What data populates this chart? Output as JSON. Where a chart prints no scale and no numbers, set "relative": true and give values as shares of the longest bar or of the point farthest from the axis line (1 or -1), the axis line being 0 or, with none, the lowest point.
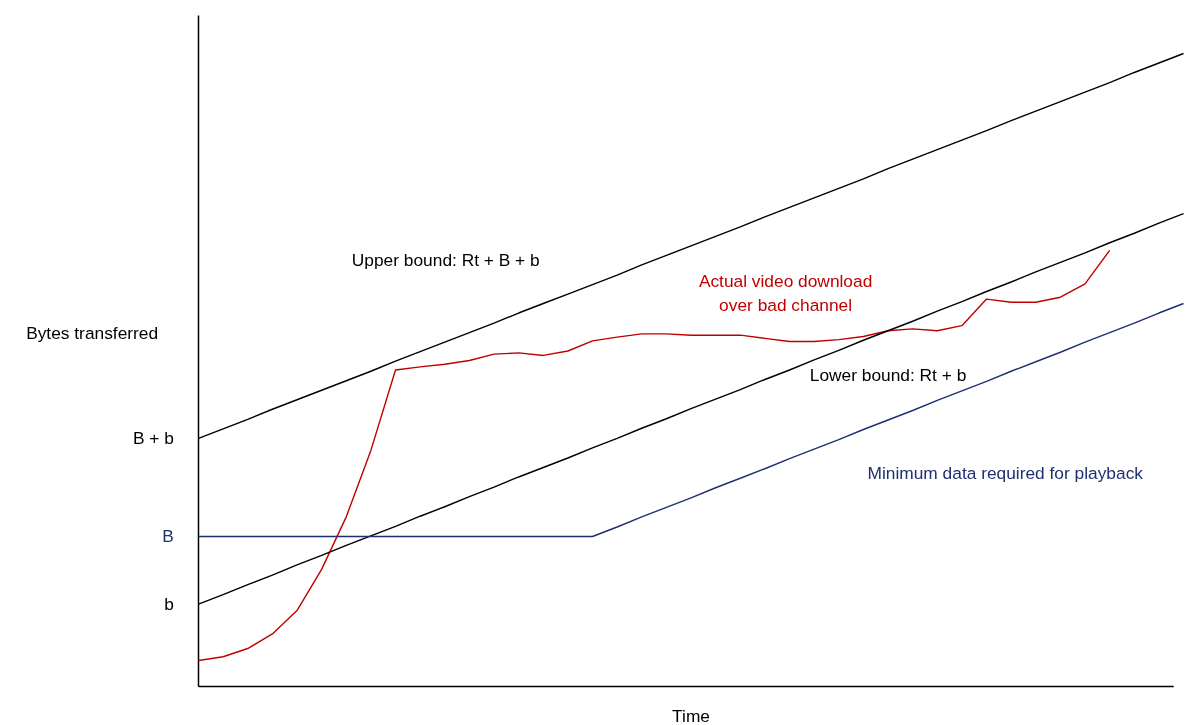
{
  "chart_data": {
    "type": "line",
    "relative": true,
    "xlabel": "Time",
    "ylabel": "Bytes transferred",
    "categories": [
      null,
      null,
      null,
      null,
      null,
      null,
      null,
      null,
      null,
      null,
      null,
      null,
      null,
      null,
      null,
      null,
      null,
      null,
      null,
      null,
      null,
      null,
      null,
      null,
      null,
      null,
      null,
      null,
      null,
      null,
      null,
      null,
      null,
      null,
      null,
      null,
      null,
      null,
      null,
      null,
      null
    ],
    "series": [
      {
        "name": "Upper bound: Rt + B + b",
        "color": "#000000",
        "values": [
          0.392,
          0.407,
          0.422,
          0.438,
          0.453,
          0.468,
          0.483,
          0.498,
          0.514,
          0.529,
          0.544,
          0.559,
          0.574,
          0.59,
          0.605,
          0.62,
          0.635,
          0.65,
          0.666,
          0.681,
          0.696,
          0.711,
          0.726,
          0.742,
          0.757,
          0.772,
          0.787,
          0.802,
          0.818,
          0.833,
          0.848,
          0.863,
          0.878,
          0.894,
          0.909,
          0.924,
          0.939,
          0.954,
          0.97,
          0.985,
          1.0
        ]
      },
      {
        "name": "Actual video download\nover bad channel",
        "color": "#c00000",
        "values": [
          0.041,
          0.047,
          0.06,
          0.083,
          0.12,
          0.185,
          0.268,
          0.373,
          0.5,
          0.505,
          0.509,
          0.515,
          0.525,
          0.527,
          0.523,
          0.53,
          0.546,
          0.552,
          0.557,
          0.557,
          0.555,
          0.555,
          0.555,
          0.55,
          0.545,
          0.545,
          0.548,
          0.553,
          0.562,
          0.565,
          0.562,
          0.57,
          0.612,
          0.607,
          0.607,
          0.615,
          0.636,
          0.689,
          null,
          null,
          null
        ]
      },
      {
        "name": "Lower bound: Rt + b",
        "color": "#000000",
        "values": [
          0.13,
          0.145,
          0.161,
          0.176,
          0.192,
          0.207,
          0.223,
          0.238,
          0.253,
          0.269,
          0.284,
          0.3,
          0.315,
          0.331,
          0.346,
          0.361,
          0.377,
          0.392,
          0.408,
          0.423,
          0.439,
          0.454,
          0.469,
          0.485,
          0.5,
          0.516,
          0.531,
          0.547,
          0.562,
          0.577,
          0.593,
          0.608,
          0.624,
          0.639,
          0.655,
          0.67,
          0.685,
          0.701,
          0.716,
          0.732,
          0.747
        ]
      },
      {
        "name": "Minimum data required for playback",
        "color": "#1f3070",
        "values": [
          0.237,
          0.237,
          0.237,
          0.237,
          0.237,
          0.237,
          0.237,
          0.237,
          0.237,
          0.237,
          0.237,
          0.237,
          0.237,
          0.237,
          0.237,
          0.237,
          0.237,
          0.252,
          0.268,
          0.283,
          0.298,
          0.314,
          0.329,
          0.344,
          0.36,
          0.375,
          0.39,
          0.406,
          0.421,
          0.436,
          0.452,
          0.467,
          0.482,
          0.498,
          0.513,
          0.528,
          0.544,
          0.559,
          0.574,
          0.59,
          0.605
        ]
      }
    ],
    "annotations": [
      "B + b",
      "B",
      "b"
    ]
  }
}
